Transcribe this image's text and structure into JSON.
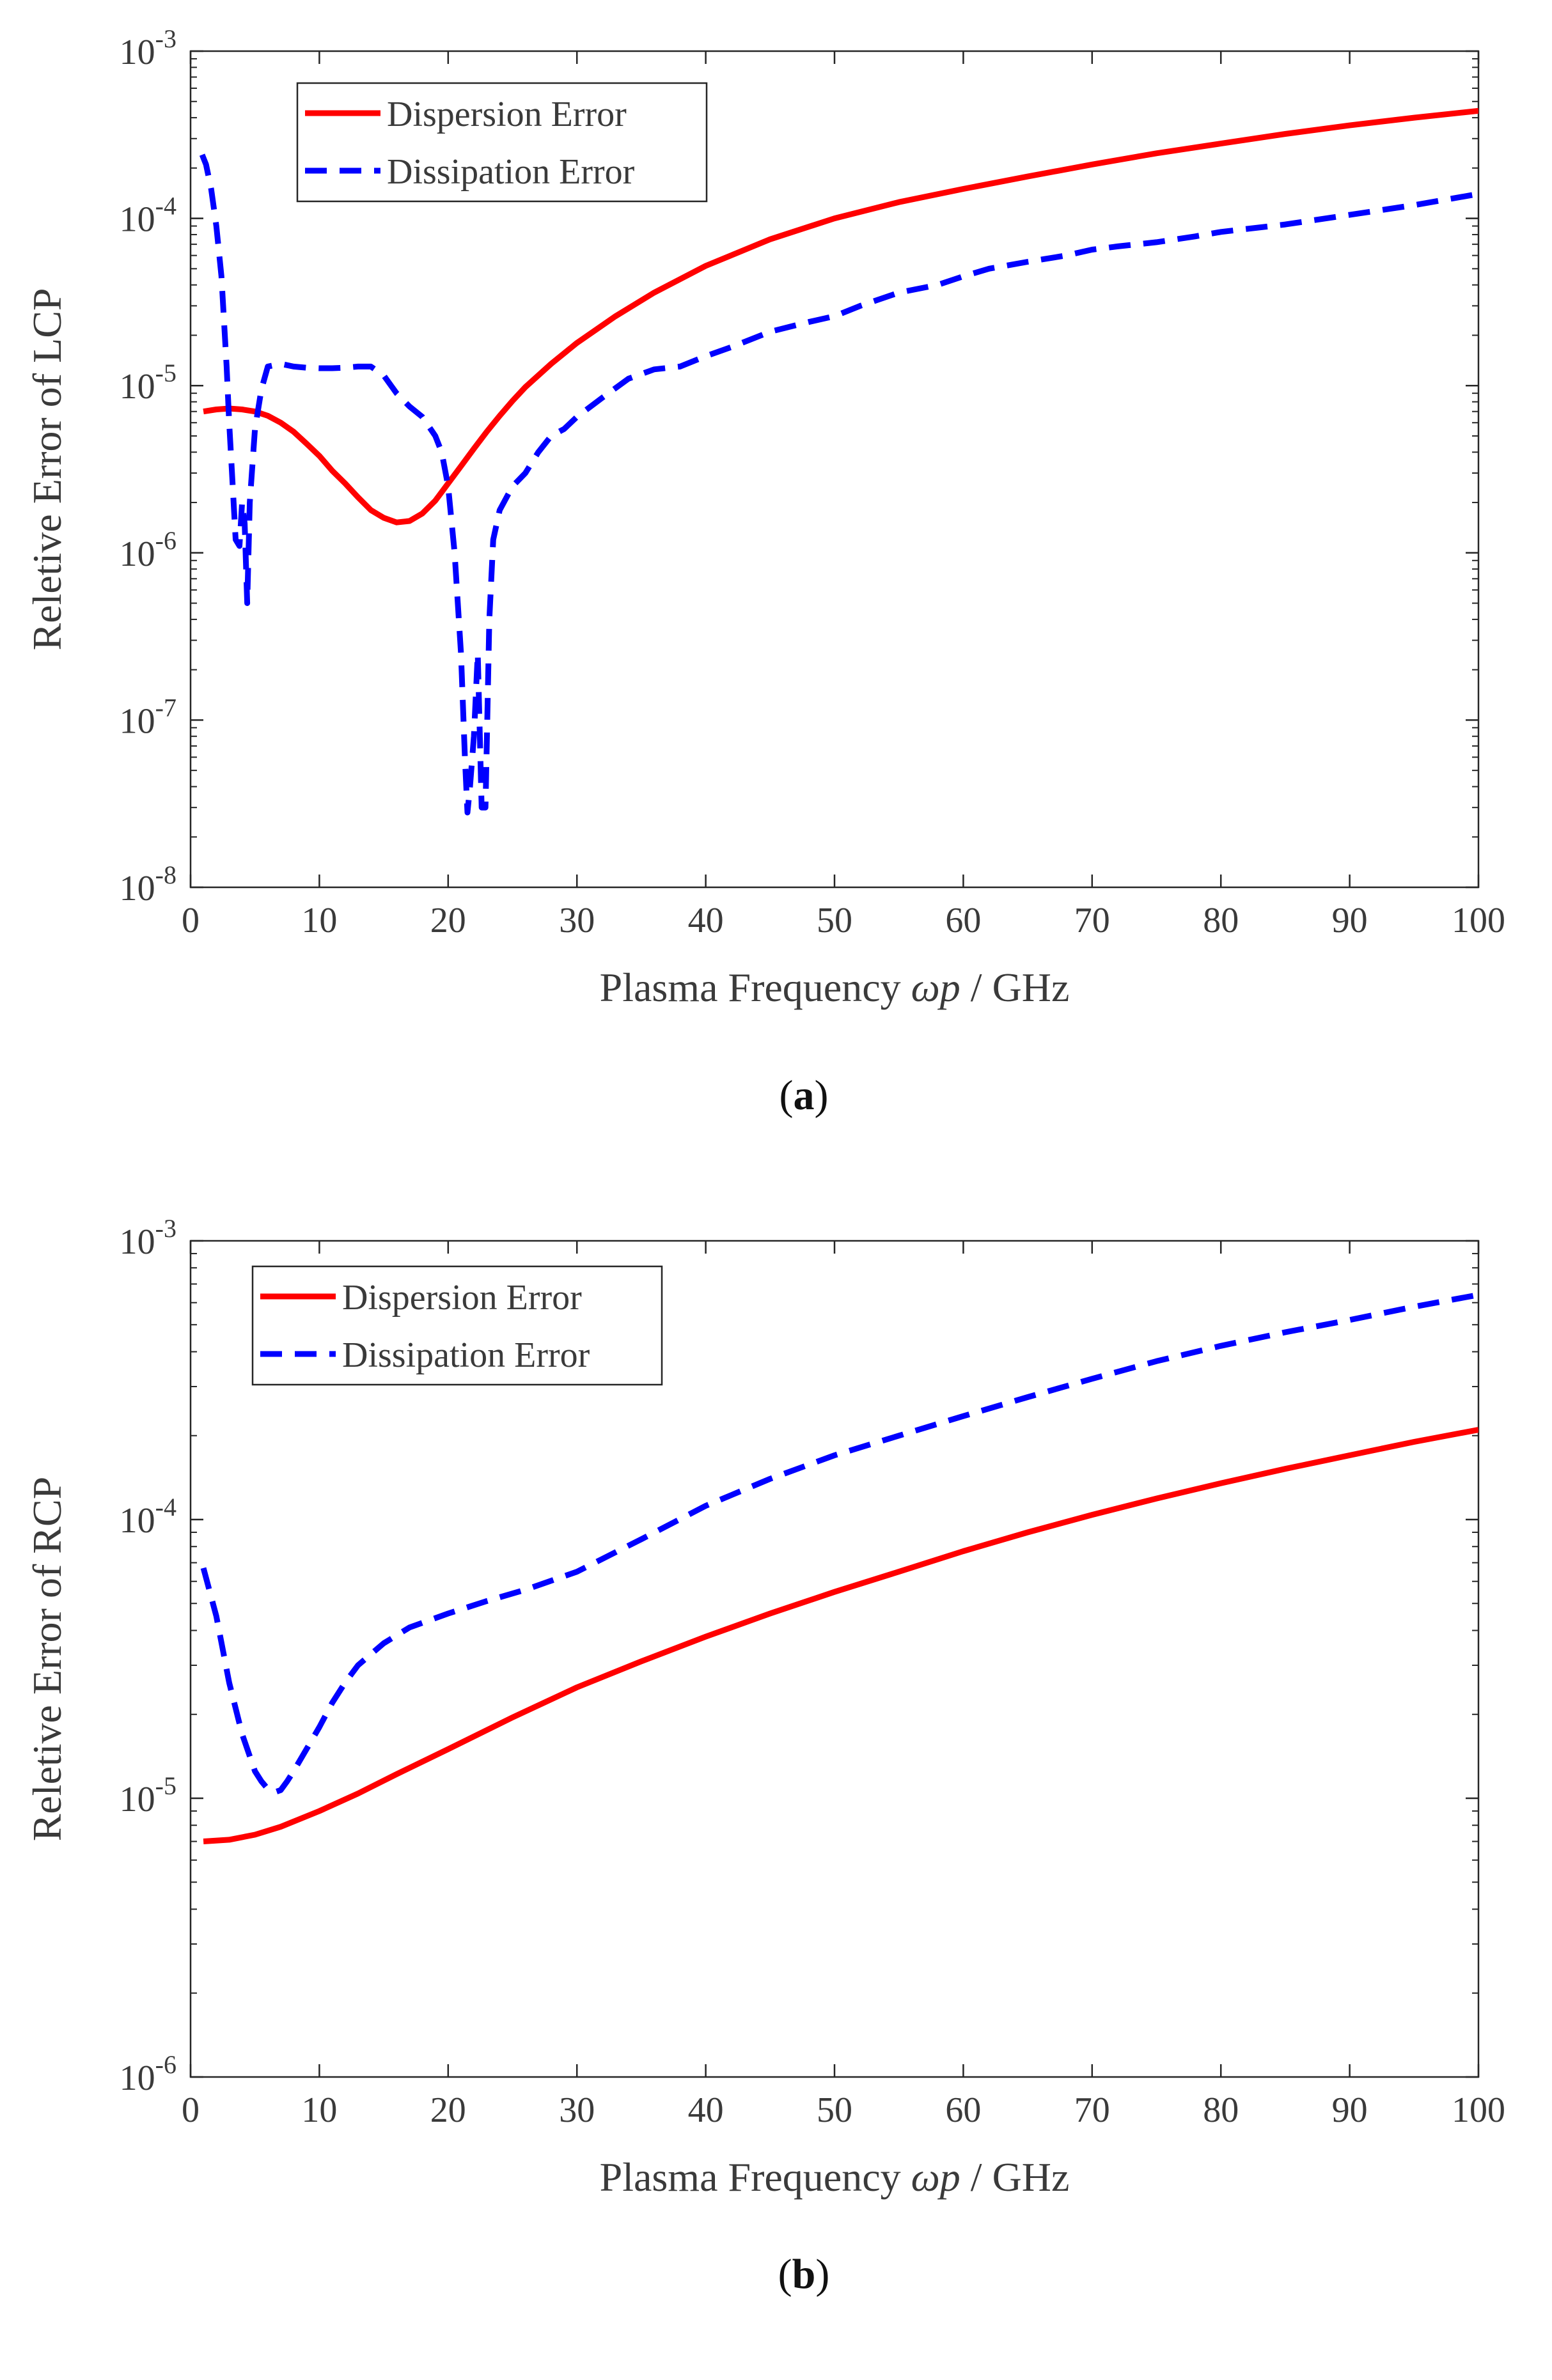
{
  "chart_data": [
    {
      "type": "line",
      "panel_label": "a",
      "xlabel": "Plasma Frequency ωp / GHz",
      "ylabel": "Reletive Error of LCP",
      "y_scale": "log",
      "xlim": [
        0,
        100
      ],
      "ylim": [
        1e-08,
        0.001
      ],
      "x_ticks": [
        0,
        10,
        20,
        30,
        40,
        50,
        60,
        70,
        80,
        90,
        100
      ],
      "y_tick_exponents": [
        -8,
        -7,
        -6,
        -5,
        -4,
        -3
      ],
      "legend": "top-left",
      "grid": false,
      "series": [
        {
          "name": "Dispersion Error",
          "color": "#ff0000",
          "style": "solid",
          "x": [
            1,
            2,
            3,
            4,
            5,
            6,
            7,
            8,
            9,
            10,
            11,
            12,
            13,
            14,
            15,
            16,
            17,
            18,
            19,
            20,
            21,
            22,
            23,
            24,
            25,
            26,
            28,
            30,
            33,
            36,
            40,
            45,
            50,
            55,
            60,
            65,
            70,
            75,
            80,
            85,
            90,
            95,
            100
          ],
          "values": [
            7e-06,
            7.2e-06,
            7.3e-06,
            7.2e-06,
            7e-06,
            6.6e-06,
            6e-06,
            5.3e-06,
            4.5e-06,
            3.8e-06,
            3.1e-06,
            2.6e-06,
            2.15e-06,
            1.8e-06,
            1.62e-06,
            1.52e-06,
            1.55e-06,
            1.72e-06,
            2.05e-06,
            2.6e-06,
            3.3e-06,
            4.2e-06,
            5.3e-06,
            6.6e-06,
            8.1e-06,
            9.8e-06,
            1.35e-05,
            1.8e-05,
            2.6e-05,
            3.6e-05,
            5.2e-05,
            7.5e-05,
            0.0001,
            0.000125,
            0.00015,
            0.000178,
            0.00021,
            0.000245,
            0.00028,
            0.00032,
            0.00036,
            0.0004,
            0.00044
          ]
        },
        {
          "name": "Dissipation Error",
          "color": "#0000ff",
          "style": "dashed",
          "x": [
            0.9,
            1.2,
            1.6,
            2.0,
            2.4,
            2.8,
            3.0,
            3.2,
            3.5,
            3.8,
            4.0,
            4.2,
            4.4,
            4.6,
            5.0,
            5.5,
            6.0,
            7,
            8,
            9,
            10,
            11,
            12,
            13,
            14,
            15,
            16,
            17,
            18,
            19,
            19.5,
            20,
            20.5,
            21,
            21.3,
            21.5,
            21.7,
            22.0,
            22.3,
            22.6,
            22.9,
            23.2,
            23.5,
            24,
            25,
            26,
            27,
            28,
            29,
            30,
            32,
            34,
            36,
            38,
            40,
            42,
            45,
            48,
            50,
            52,
            55,
            58,
            60,
            62,
            65,
            68,
            70,
            72,
            75,
            78,
            80,
            85,
            90,
            95,
            100
          ],
          "values": [
            0.00024,
            0.00021,
            0.00015,
            9e-05,
            4.5e-05,
            1.3e-05,
            6e-06,
            3.2e-06,
            1.2e-06,
            1.1e-06,
            2e-06,
            1.5e-06,
            5e-07,
            2e-06,
            5.5e-06,
            9.5e-06,
            1.3e-05,
            1.35e-05,
            1.3e-05,
            1.28e-05,
            1.27e-05,
            1.27e-05,
            1.28e-05,
            1.3e-05,
            1.3e-05,
            1.15e-05,
            9e-06,
            7.5e-06,
            6.5e-06,
            5e-06,
            4e-06,
            2.5e-06,
            1e-06,
            2.5e-07,
            6e-08,
            2.8e-08,
            4e-08,
            8e-08,
            2.5e-07,
            3e-08,
            3e-08,
            4e-07,
            1.2e-06,
            1.8e-06,
            2.5e-06,
            3e-06,
            4e-06,
            5e-06,
            5.5e-06,
            6.5e-06,
            8.5e-06,
            1.1e-05,
            1.25e-05,
            1.3e-05,
            1.5e-05,
            1.7e-05,
            2.1e-05,
            2.4e-05,
            2.6e-05,
            3e-05,
            3.6e-05,
            4e-05,
            4.5e-05,
            5e-05,
            5.5e-05,
            6e-05,
            6.5e-05,
            6.8e-05,
            7.2e-05,
            7.8e-05,
            8.3e-05,
            9.2e-05,
            0.000105,
            0.00012,
            0.00014
          ]
        }
      ]
    },
    {
      "type": "line",
      "panel_label": "b",
      "xlabel": "Plasma Frequency ωp / GHz",
      "ylabel": "Reletive Error of RCP",
      "y_scale": "log",
      "xlim": [
        0,
        100
      ],
      "ylim": [
        1e-06,
        0.001
      ],
      "x_ticks": [
        0,
        10,
        20,
        30,
        40,
        50,
        60,
        70,
        80,
        90,
        100
      ],
      "y_tick_exponents": [
        -6,
        -5,
        -4,
        -3
      ],
      "legend": "top-left",
      "grid": false,
      "series": [
        {
          "name": "Dispersion Error",
          "color": "#ff0000",
          "style": "solid",
          "x": [
            1,
            3,
            5,
            7,
            10,
            13,
            16,
            20,
            25,
            30,
            35,
            40,
            45,
            50,
            55,
            60,
            65,
            70,
            75,
            80,
            85,
            90,
            95,
            100
          ],
          "values": [
            7e-06,
            7.1e-06,
            7.4e-06,
            7.9e-06,
            9e-06,
            1.04e-05,
            1.22e-05,
            1.5e-05,
            1.95e-05,
            2.5e-05,
            3.1e-05,
            3.8e-05,
            4.6e-05,
            5.5e-05,
            6.5e-05,
            7.7e-05,
            9e-05,
            0.000104,
            0.000119,
            0.000135,
            0.000152,
            0.00017,
            0.00019,
            0.00021
          ]
        },
        {
          "name": "Dissipation Error",
          "color": "#0000ff",
          "style": "dashed",
          "x": [
            1,
            2,
            3,
            4,
            5,
            5.5,
            6,
            6.5,
            7,
            7.5,
            8,
            9,
            10,
            11,
            12,
            13,
            15,
            17,
            20,
            23,
            26,
            30,
            35,
            40,
            45,
            50,
            55,
            60,
            65,
            70,
            75,
            80,
            85,
            90,
            95,
            100
          ],
          "values": [
            6.7e-05,
            4.5e-05,
            2.6e-05,
            1.7e-05,
            1.25e-05,
            1.15e-05,
            1.08e-05,
            1.05e-05,
            1.07e-05,
            1.15e-05,
            1.25e-05,
            1.5e-05,
            1.8e-05,
            2.2e-05,
            2.6e-05,
            3e-05,
            3.6e-05,
            4.1e-05,
            4.6e-05,
            5.1e-05,
            5.6e-05,
            6.5e-05,
            8.5e-05,
            0.000112,
            0.00014,
            0.00017,
            0.0002,
            0.000235,
            0.000275,
            0.00032,
            0.00037,
            0.00042,
            0.00047,
            0.00052,
            0.00058,
            0.00064
          ]
        }
      ]
    }
  ]
}
